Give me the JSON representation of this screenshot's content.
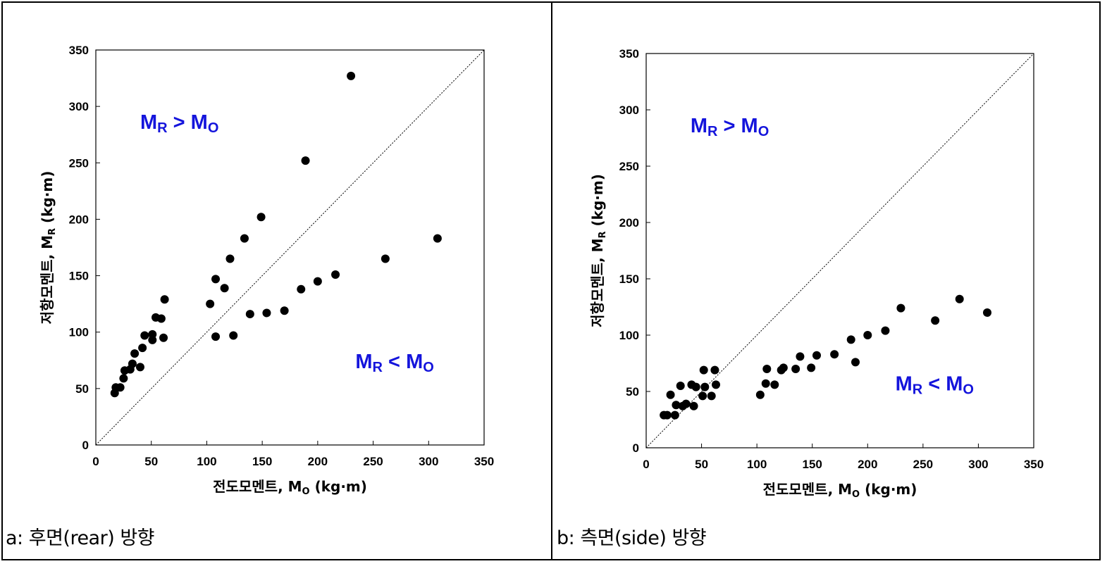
{
  "captions": {
    "left": "a: 후면(rear) 방향",
    "right": "b: 측면(side) 방향"
  },
  "colors": {
    "region_label": "#1414dc",
    "points": "#000000"
  },
  "chart_data": [
    {
      "type": "scatter",
      "title": "",
      "xlabel": {
        "text": "전도모멘트, M",
        "sub": "O",
        "unit": "(kg·m)"
      },
      "ylabel": {
        "text": "저항모멘트, M",
        "sub": "R",
        "unit": "(kg·m)"
      },
      "xlim": [
        0,
        350
      ],
      "ylim": [
        0,
        350
      ],
      "xticks": [
        0,
        50,
        100,
        150,
        200,
        250,
        300,
        350
      ],
      "yticks": [
        0,
        50,
        100,
        150,
        200,
        250,
        300,
        350
      ],
      "reference_line": "y = x (dotted)",
      "annotations": [
        {
          "main": "M",
          "sub": "R",
          "op": " > ",
          "main2": "M",
          "sub2": "O",
          "at": [
            40,
            280
          ]
        },
        {
          "main": "M",
          "sub": "R",
          "op": " < ",
          "main2": "M",
          "sub2": "O",
          "at": [
            234,
            68
          ]
        }
      ],
      "points": [
        [
          17,
          46
        ],
        [
          18,
          51
        ],
        [
          22,
          51
        ],
        [
          25,
          59
        ],
        [
          26,
          66
        ],
        [
          31,
          67
        ],
        [
          33,
          72
        ],
        [
          35,
          81
        ],
        [
          40,
          69
        ],
        [
          42,
          86
        ],
        [
          44,
          97
        ],
        [
          51,
          98
        ],
        [
          51,
          93
        ],
        [
          54,
          113
        ],
        [
          59,
          112
        ],
        [
          61,
          95
        ],
        [
          62,
          129
        ],
        [
          103,
          125
        ],
        [
          108,
          147
        ],
        [
          108,
          96
        ],
        [
          116,
          139
        ],
        [
          121,
          165
        ],
        [
          124,
          97
        ],
        [
          134,
          183
        ],
        [
          139,
          116
        ],
        [
          149,
          202
        ],
        [
          154,
          117
        ],
        [
          170,
          119
        ],
        [
          185,
          138
        ],
        [
          189,
          252
        ],
        [
          200,
          145
        ],
        [
          216,
          151
        ],
        [
          230,
          327
        ],
        [
          261,
          165
        ],
        [
          308,
          183
        ]
      ]
    },
    {
      "type": "scatter",
      "title": "",
      "xlabel": {
        "text": "전도모멘트, M",
        "sub": "O",
        "unit": "(kg·m)"
      },
      "ylabel": {
        "text": "저항모멘트, M",
        "sub": "R",
        "unit": "(kg·m)"
      },
      "xlim": [
        0,
        350
      ],
      "ylim": [
        0,
        350
      ],
      "xticks": [
        0,
        50,
        100,
        150,
        200,
        250,
        300,
        350
      ],
      "yticks": [
        0,
        50,
        100,
        150,
        200,
        250,
        300,
        350
      ],
      "reference_line": "y = x (dotted)",
      "annotations": [
        {
          "main": "M",
          "sub": "R",
          "op": " > ",
          "main2": "M",
          "sub2": "O",
          "at": [
            40,
            280
          ]
        },
        {
          "main": "M",
          "sub": "R",
          "op": " < ",
          "main2": "M",
          "sub2": "O",
          "at": [
            225,
            51
          ]
        }
      ],
      "points": [
        [
          16,
          29
        ],
        [
          19,
          29
        ],
        [
          22,
          47
        ],
        [
          26,
          29
        ],
        [
          27,
          38
        ],
        [
          31,
          55
        ],
        [
          33,
          37
        ],
        [
          36,
          39
        ],
        [
          41,
          56
        ],
        [
          43,
          37
        ],
        [
          45,
          54
        ],
        [
          51,
          46
        ],
        [
          52,
          69
        ],
        [
          53,
          54
        ],
        [
          59,
          46
        ],
        [
          62,
          69
        ],
        [
          63,
          56
        ],
        [
          103,
          47
        ],
        [
          108,
          57
        ],
        [
          109,
          70
        ],
        [
          116,
          56
        ],
        [
          122,
          69
        ],
        [
          124,
          71
        ],
        [
          135,
          70
        ],
        [
          139,
          81
        ],
        [
          149,
          71
        ],
        [
          154,
          82
        ],
        [
          170,
          83
        ],
        [
          185,
          96
        ],
        [
          189,
          76
        ],
        [
          200,
          100
        ],
        [
          216,
          104
        ],
        [
          230,
          124
        ],
        [
          261,
          113
        ],
        [
          283,
          132
        ],
        [
          308,
          120
        ]
      ]
    }
  ]
}
